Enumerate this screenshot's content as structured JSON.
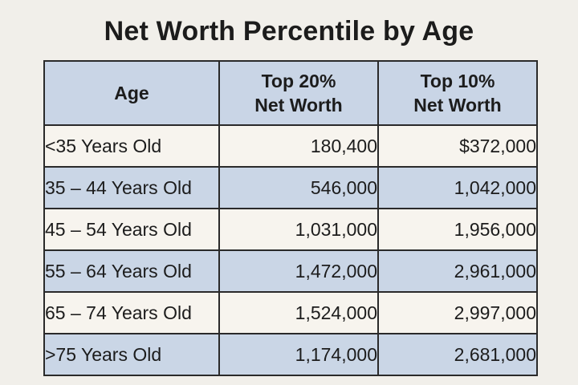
{
  "chart_data": {
    "type": "table",
    "title": "Net Worth Percentile by Age",
    "columns": [
      {
        "lines": [
          "Age"
        ]
      },
      {
        "lines": [
          "Top 20%",
          "Net Worth"
        ]
      },
      {
        "lines": [
          "Top 10%",
          "Net Worth"
        ]
      }
    ],
    "rows": [
      {
        "age": "<35 Years Old",
        "top20": "180,400",
        "top10": "$372,000"
      },
      {
        "age": "35 – 44 Years Old",
        "top20": "546,000",
        "top10": "1,042,000"
      },
      {
        "age": "45 – 54 Years Old",
        "top20": "1,031,000",
        "top10": "1,956,000"
      },
      {
        "age": "55 – 64 Years Old",
        "top20": "1,472,000",
        "top10": "2,961,000"
      },
      {
        "age": "65 – 74 Years Old",
        "top20": "1,524,000",
        "top10": "2,997,000"
      },
      {
        "age": ">75 Years Old",
        "top20": "1,174,000",
        "top10": "2,681,000"
      }
    ]
  },
  "colors": {
    "header_fill": "#c9d5e6",
    "row_blue": "#cad6e6",
    "row_light": "#f7f4ee",
    "border": "#2a2a2a",
    "background": "#f1efea"
  }
}
